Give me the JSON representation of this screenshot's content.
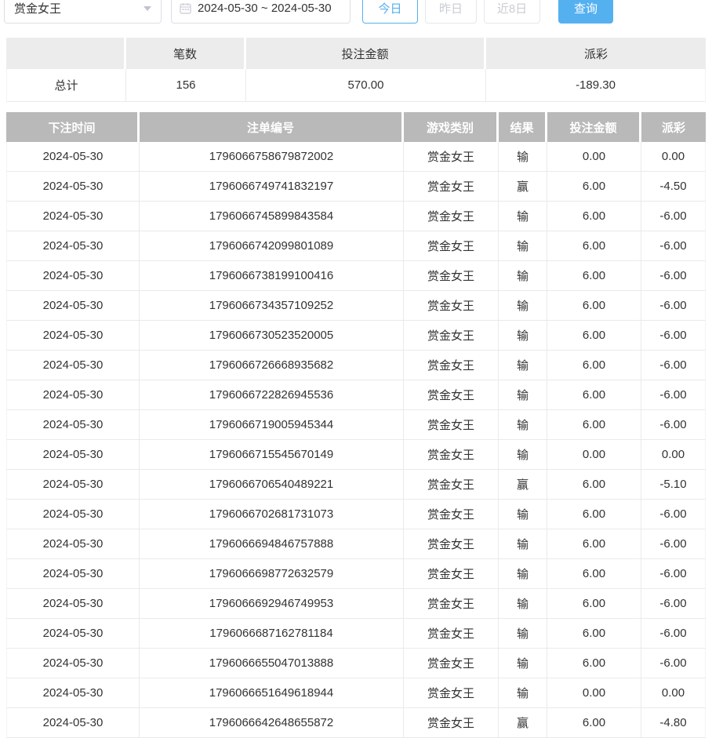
{
  "controls": {
    "game_select_value": "赏金女王",
    "date_range_value": "2024-05-30 ~ 2024-05-30",
    "today_label": "今日",
    "yesterday_label": "昨日",
    "last8_label": "近8日",
    "query_label": "查询"
  },
  "summary": {
    "headers": [
      "",
      "笔数",
      "投注金额",
      "派彩"
    ],
    "total_label": "总计",
    "count": "156",
    "bet_amount": "570.00",
    "payout": "-189.30"
  },
  "table": {
    "headers": [
      "下注时间",
      "注单编号",
      "游戏类别",
      "结果",
      "投注金额",
      "派彩"
    ],
    "rows": [
      {
        "date": "2024-05-30",
        "id": "1796066758679872002",
        "game": "赏金女王",
        "result": "输",
        "bet": "0.00",
        "payout": "0.00"
      },
      {
        "date": "2024-05-30",
        "id": "1796066749741832197",
        "game": "赏金女王",
        "result": "赢",
        "bet": "6.00",
        "payout": "-4.50"
      },
      {
        "date": "2024-05-30",
        "id": "1796066745899843584",
        "game": "赏金女王",
        "result": "输",
        "bet": "6.00",
        "payout": "-6.00"
      },
      {
        "date": "2024-05-30",
        "id": "1796066742099801089",
        "game": "赏金女王",
        "result": "输",
        "bet": "6.00",
        "payout": "-6.00"
      },
      {
        "date": "2024-05-30",
        "id": "1796066738199100416",
        "game": "赏金女王",
        "result": "输",
        "bet": "6.00",
        "payout": "-6.00"
      },
      {
        "date": "2024-05-30",
        "id": "1796066734357109252",
        "game": "赏金女王",
        "result": "输",
        "bet": "6.00",
        "payout": "-6.00"
      },
      {
        "date": "2024-05-30",
        "id": "1796066730523520005",
        "game": "赏金女王",
        "result": "输",
        "bet": "6.00",
        "payout": "-6.00"
      },
      {
        "date": "2024-05-30",
        "id": "1796066726668935682",
        "game": "赏金女王",
        "result": "输",
        "bet": "6.00",
        "payout": "-6.00"
      },
      {
        "date": "2024-05-30",
        "id": "1796066722826945536",
        "game": "赏金女王",
        "result": "输",
        "bet": "6.00",
        "payout": "-6.00"
      },
      {
        "date": "2024-05-30",
        "id": "1796066719005945344",
        "game": "赏金女王",
        "result": "输",
        "bet": "6.00",
        "payout": "-6.00"
      },
      {
        "date": "2024-05-30",
        "id": "1796066715545670149",
        "game": "赏金女王",
        "result": "输",
        "bet": "0.00",
        "payout": "0.00"
      },
      {
        "date": "2024-05-30",
        "id": "1796066706540489221",
        "game": "赏金女王",
        "result": "赢",
        "bet": "6.00",
        "payout": "-5.10"
      },
      {
        "date": "2024-05-30",
        "id": "1796066702681731073",
        "game": "赏金女王",
        "result": "输",
        "bet": "6.00",
        "payout": "-6.00"
      },
      {
        "date": "2024-05-30",
        "id": "1796066694846757888",
        "game": "赏金女王",
        "result": "输",
        "bet": "6.00",
        "payout": "-6.00"
      },
      {
        "date": "2024-05-30",
        "id": "1796066698772632579",
        "game": "赏金女王",
        "result": "输",
        "bet": "6.00",
        "payout": "-6.00"
      },
      {
        "date": "2024-05-30",
        "id": "1796066692946749953",
        "game": "赏金女王",
        "result": "输",
        "bet": "6.00",
        "payout": "-6.00"
      },
      {
        "date": "2024-05-30",
        "id": "1796066687162781184",
        "game": "赏金女王",
        "result": "输",
        "bet": "6.00",
        "payout": "-6.00"
      },
      {
        "date": "2024-05-30",
        "id": "1796066655047013888",
        "game": "赏金女王",
        "result": "输",
        "bet": "6.00",
        "payout": "-6.00"
      },
      {
        "date": "2024-05-30",
        "id": "1796066651649618944",
        "game": "赏金女王",
        "result": "输",
        "bet": "0.00",
        "payout": "0.00"
      },
      {
        "date": "2024-05-30",
        "id": "1796066642648655872",
        "game": "赏金女王",
        "result": "赢",
        "bet": "6.00",
        "payout": "-4.80"
      }
    ]
  },
  "colors": {
    "primary": "#55b0f0",
    "negative": "#f56c6c",
    "table_header_bg": "#b9b9b9",
    "summary_header_bg": "#ececec"
  }
}
